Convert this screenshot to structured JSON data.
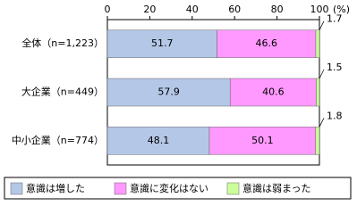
{
  "chart_data": {
    "type": "stacked-bar-horizontal",
    "categories": [
      "全体（n=1,223）",
      "大企業（n=449）",
      "中小企業（n=774）"
    ],
    "series": [
      {
        "name": "意識は増した",
        "color": "#b4c7e7",
        "values": [
          51.7,
          57.9,
          48.1
        ]
      },
      {
        "name": "意識に変化はない",
        "color": "#ff99ff",
        "values": [
          46.6,
          40.6,
          50.1
        ]
      },
      {
        "name": "意識は弱まった",
        "color": "#ccff99",
        "values": [
          1.7,
          1.5,
          1.8
        ]
      }
    ],
    "xlim": [
      0,
      100
    ],
    "xticks": [
      0,
      20,
      40,
      60,
      80,
      100
    ],
    "unit": "(%)"
  }
}
